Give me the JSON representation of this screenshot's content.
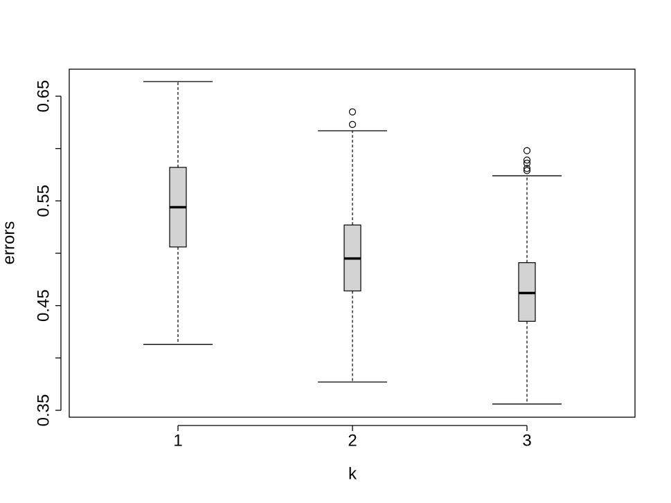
{
  "chart_data": {
    "type": "box",
    "x_label": "k",
    "y_label": "errors",
    "categories": [
      "1",
      "2",
      "3"
    ],
    "boxes": [
      {
        "whislo": 0.413,
        "q1": 0.506,
        "med": 0.544,
        "q3": 0.582,
        "whishi": 0.664,
        "outliers": []
      },
      {
        "whislo": 0.377,
        "q1": 0.464,
        "med": 0.495,
        "q3": 0.527,
        "whishi": 0.617,
        "outliers": [
          0.635,
          0.623
        ]
      },
      {
        "whislo": 0.356,
        "q1": 0.435,
        "med": 0.462,
        "q3": 0.491,
        "whishi": 0.574,
        "outliers": [
          0.598,
          0.589,
          0.586,
          0.581,
          0.579
        ]
      }
    ],
    "color": "#d3d3d3",
    "ylim": [
      0.3434,
      0.6758
    ],
    "yticks": [
      0.35,
      0.45,
      0.55,
      0.65
    ],
    "yminor_ticks": [
      0.4,
      0.5,
      0.6
    ],
    "grid": false
  }
}
